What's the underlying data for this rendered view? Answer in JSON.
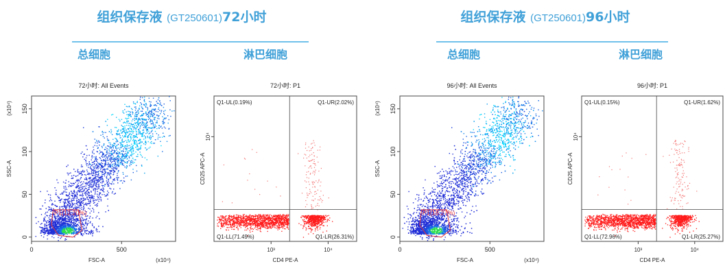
{
  "panels": [
    {
      "header": {
        "prefix": "组织保存液",
        "code": "(GT250601)",
        "time": "72小时"
      },
      "total_label": "总细胞",
      "lymph_label": "淋巴细胞"
    },
    {
      "header": {
        "prefix": "组织保存液",
        "code": "(GT250601)",
        "time": "96小时"
      },
      "total_label": "总细胞",
      "lymph_label": "淋巴细胞"
    }
  ],
  "colors": {
    "accent": "#3fa0d8",
    "density_low": "#1f2bd6",
    "density_high": "#00e0ff",
    "gate": "#e8383a",
    "quad_dots": "#ff1a1a"
  },
  "chart_data": [
    {
      "type": "scatter",
      "title": "72小时: All Events",
      "xlabel": "FSC-A",
      "ylabel": "SSC-A",
      "x_exponent": "(x10⁴)",
      "y_exponent": "(x10⁴)",
      "xlim": [
        0,
        800
      ],
      "ylim": [
        -5,
        165
      ],
      "x_ticks": [
        0,
        500
      ],
      "y_ticks": [
        0,
        50,
        100,
        150
      ],
      "gate": {
        "name": "P1",
        "percent": "12.20%",
        "label": "P1(12.20%)"
      },
      "populations": [
        {
          "name": "main",
          "x": [
            80,
            760
          ],
          "y": [
            5,
            160
          ],
          "note": "diagonal dense cloud"
        },
        {
          "name": "P1 lymphocytes",
          "x": [
            30,
            280
          ],
          "y": [
            0,
            30
          ]
        }
      ]
    },
    {
      "type": "scatter",
      "title": "72小时: P1",
      "xlabel": "CD4 PE-A",
      "ylabel": "CD25 APC-A",
      "x_scale": "log",
      "y_scale": "log",
      "x_ticks": [
        "10³",
        "10⁴"
      ],
      "y_ticks": [
        "10⁴"
      ],
      "quadrants": [
        {
          "name": "Q1-UL",
          "percent": "0.19%",
          "label": "Q1-UL(0.19%)"
        },
        {
          "name": "Q1-UR",
          "percent": "2.02%",
          "label": "Q1-UR(2.02%)"
        },
        {
          "name": "Q1-LL",
          "percent": "71.49%",
          "label": "Q1-LL(71.49%)"
        },
        {
          "name": "Q1-LR",
          "percent": "26.31%",
          "label": "Q1-LR(26.31%)"
        }
      ]
    },
    {
      "type": "scatter",
      "title": "96小时: All Events",
      "xlabel": "FSC-A",
      "ylabel": "SSC-A",
      "x_exponent": "(x10⁴)",
      "y_exponent": "(x10⁴)",
      "xlim": [
        0,
        800
      ],
      "ylim": [
        -5,
        165
      ],
      "x_ticks": [
        0,
        500
      ],
      "y_ticks": [
        0,
        50,
        100,
        150
      ],
      "gate": {
        "name": "P1",
        "percent": "18.27%",
        "label": "P1(18.27%)"
      },
      "populations": [
        {
          "name": "main",
          "x": [
            80,
            760
          ],
          "y": [
            5,
            160
          ],
          "note": "diagonal dense cloud"
        },
        {
          "name": "P1 lymphocytes",
          "x": [
            30,
            280
          ],
          "y": [
            0,
            30
          ]
        }
      ]
    },
    {
      "type": "scatter",
      "title": "96小时: P1",
      "xlabel": "CD4 PE-A",
      "ylabel": "CD25 APC-A",
      "x_scale": "log",
      "y_scale": "log",
      "x_ticks": [
        "10³",
        "10⁴"
      ],
      "y_ticks": [
        "10⁴"
      ],
      "quadrants": [
        {
          "name": "Q1-UL",
          "percent": "0.15%",
          "label": "Q1-UL(0.15%)"
        },
        {
          "name": "Q1-UR",
          "percent": "1.62%",
          "label": "Q1-UR(1.62%)"
        },
        {
          "name": "Q1-LL",
          "percent": "72.96%",
          "label": "Q1-LL(72.96%)"
        },
        {
          "name": "Q1-LR",
          "percent": "25.27%",
          "label": "Q1-LR(25.27%)"
        }
      ]
    }
  ]
}
